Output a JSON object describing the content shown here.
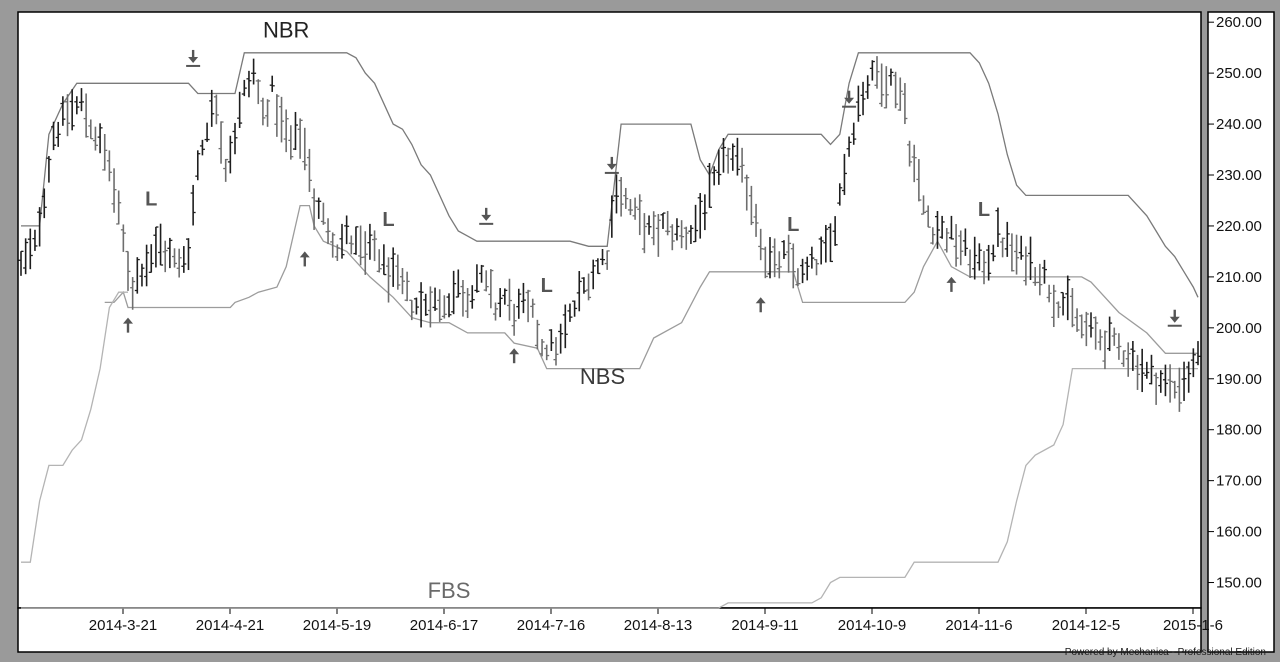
{
  "footer": "Powered by Mechanica - Professional Edition",
  "chart_data": {
    "type": "line",
    "y_ticks": [
      "260.00",
      "250.00",
      "240.00",
      "230.00",
      "220.00",
      "210.00",
      "200.00",
      "190.00",
      "180.00",
      "170.00",
      "160.00",
      "150.00"
    ],
    "y_tick_values": [
      260,
      250,
      240,
      230,
      220,
      210,
      200,
      190,
      180,
      170,
      160,
      150
    ],
    "ylim": [
      145,
      262
    ],
    "x_ticks": [
      "2014-3-21",
      "2014-4-21",
      "2014-5-19",
      "2014-6-17",
      "2014-7-16",
      "2014-8-13",
      "2014-9-11",
      "2014-10-9",
      "2014-11-6",
      "2014-12-5",
      "2015-1-6"
    ],
    "x_tick_index": [
      23,
      46,
      69,
      92,
      115,
      138,
      161,
      184,
      207,
      230,
      253
    ],
    "n_bars": 253,
    "annotations": [
      {
        "text": "NBR",
        "i": 57,
        "v": 257,
        "color": "#222222",
        "size": 22
      },
      {
        "text": "NBS",
        "i": 125,
        "v": 189,
        "color": "#3a3a3a",
        "size": 22
      },
      {
        "text": "FBS",
        "i": 92,
        "v": 147,
        "color": "#6a6a6a",
        "size": 22
      },
      {
        "text": "L",
        "i": 28,
        "v": 224,
        "color": "#555555",
        "size": 20
      },
      {
        "text": "L",
        "i": 79,
        "v": 220,
        "color": "#555555",
        "size": 20
      },
      {
        "text": "L",
        "i": 113,
        "v": 207,
        "color": "#555555",
        "size": 20
      },
      {
        "text": "L",
        "i": 166,
        "v": 219,
        "color": "#555555",
        "size": 20
      },
      {
        "text": "L",
        "i": 207,
        "v": 222,
        "color": "#555555",
        "size": 20
      }
    ],
    "down_arrows": [
      {
        "i": 37,
        "v": 252
      },
      {
        "i": 100,
        "v": 221
      },
      {
        "i": 127,
        "v": 231
      },
      {
        "i": 178,
        "v": 244
      },
      {
        "i": 248,
        "v": 201
      }
    ],
    "up_arrows": [
      {
        "i": 23,
        "v": 202
      },
      {
        "i": 61,
        "v": 215
      },
      {
        "i": 106,
        "v": 196
      },
      {
        "i": 159,
        "v": 206
      },
      {
        "i": 200,
        "v": 210
      }
    ],
    "series": [
      {
        "key": "NBR",
        "color": "#7a7a7a",
        "points": [
          [
            0,
            220
          ],
          [
            4,
            220
          ],
          [
            6,
            238
          ],
          [
            9,
            244
          ],
          [
            12,
            248
          ],
          [
            16,
            248
          ],
          [
            36,
            248
          ],
          [
            38,
            246
          ],
          [
            46,
            246
          ],
          [
            48,
            254
          ],
          [
            70,
            254
          ],
          [
            72,
            253
          ],
          [
            74,
            250
          ],
          [
            76,
            248
          ],
          [
            78,
            244
          ],
          [
            80,
            240
          ],
          [
            82,
            239
          ],
          [
            84,
            236
          ],
          [
            86,
            232
          ],
          [
            88,
            230
          ],
          [
            90,
            226
          ],
          [
            92,
            222
          ],
          [
            94,
            219
          ],
          [
            96,
            218
          ],
          [
            98,
            217
          ],
          [
            118,
            217
          ],
          [
            122,
            216
          ],
          [
            126,
            216
          ],
          [
            128,
            232
          ],
          [
            129,
            240
          ],
          [
            144,
            240
          ],
          [
            146,
            233
          ],
          [
            148,
            230
          ],
          [
            150,
            235
          ],
          [
            152,
            238
          ],
          [
            172,
            238
          ],
          [
            174,
            236
          ],
          [
            176,
            238
          ],
          [
            178,
            248
          ],
          [
            180,
            254
          ],
          [
            204,
            254
          ],
          [
            206,
            252
          ],
          [
            208,
            248
          ],
          [
            210,
            242
          ],
          [
            212,
            234
          ],
          [
            214,
            228
          ],
          [
            216,
            226
          ],
          [
            238,
            226
          ],
          [
            240,
            224
          ],
          [
            242,
            222
          ],
          [
            244,
            219
          ],
          [
            246,
            216
          ],
          [
            248,
            214
          ],
          [
            250,
            211
          ],
          [
            252,
            208
          ],
          [
            253,
            206
          ]
        ]
      },
      {
        "key": "NBS",
        "color": "#9c9c9c",
        "points": [
          [
            18,
            205
          ],
          [
            20,
            205
          ],
          [
            22,
            207
          ],
          [
            23,
            204
          ],
          [
            45,
            204
          ],
          [
            46,
            205
          ],
          [
            49,
            206
          ],
          [
            51,
            207
          ],
          [
            55,
            208
          ],
          [
            57,
            212
          ],
          [
            60,
            224
          ],
          [
            62,
            224
          ],
          [
            63,
            220
          ],
          [
            65,
            217
          ],
          [
            70,
            215
          ],
          [
            75,
            210
          ],
          [
            80,
            206
          ],
          [
            84,
            202
          ],
          [
            88,
            201
          ],
          [
            92,
            201
          ],
          [
            96,
            199
          ],
          [
            104,
            199
          ],
          [
            106,
            197
          ],
          [
            111,
            196
          ],
          [
            113,
            192
          ],
          [
            116,
            192
          ],
          [
            133,
            192
          ],
          [
            136,
            198
          ],
          [
            142,
            201
          ],
          [
            146,
            208
          ],
          [
            148,
            211
          ],
          [
            150,
            211
          ],
          [
            166,
            211
          ],
          [
            168,
            205
          ],
          [
            190,
            205
          ],
          [
            192,
            207
          ],
          [
            194,
            212
          ],
          [
            197,
            217
          ],
          [
            200,
            212
          ],
          [
            204,
            210
          ],
          [
            228,
            210
          ],
          [
            230,
            209
          ],
          [
            232,
            207
          ],
          [
            236,
            203
          ],
          [
            242,
            199
          ],
          [
            246,
            195
          ],
          [
            253,
            195
          ]
        ]
      },
      {
        "key": "FBS",
        "color": "#b4b4b4",
        "points": [
          [
            0,
            154
          ],
          [
            2,
            154
          ],
          [
            4,
            166
          ],
          [
            6,
            173
          ],
          [
            9,
            173
          ],
          [
            11,
            176
          ],
          [
            13,
            178
          ],
          [
            15,
            184
          ],
          [
            17,
            192
          ],
          [
            19,
            204
          ],
          [
            21,
            207
          ],
          [
            22,
            207
          ],
          [
            23,
            207
          ]
        ]
      },
      {
        "key": "FBS",
        "color": "#b4b4b4",
        "points": [
          [
            0,
            145
          ],
          [
            150,
            145
          ],
          [
            152,
            146
          ],
          [
            170,
            146
          ],
          [
            172,
            147
          ],
          [
            174,
            150
          ],
          [
            176,
            151
          ],
          [
            190,
            151
          ],
          [
            192,
            154
          ],
          [
            210,
            154
          ],
          [
            212,
            158
          ],
          [
            214,
            166
          ],
          [
            216,
            173
          ],
          [
            218,
            175
          ],
          [
            222,
            177
          ],
          [
            224,
            181
          ],
          [
            226,
            192
          ],
          [
            253,
            192
          ]
        ]
      }
    ],
    "price_path": [
      [
        0,
        212
      ],
      [
        3,
        216
      ],
      [
        5,
        226
      ],
      [
        7,
        238
      ],
      [
        10,
        242
      ],
      [
        13,
        244
      ],
      [
        16,
        238
      ],
      [
        19,
        232
      ],
      [
        21,
        222
      ],
      [
        23,
        212
      ],
      [
        24,
        208
      ],
      [
        26,
        212
      ],
      [
        28,
        214
      ],
      [
        30,
        216
      ],
      [
        32,
        214
      ],
      [
        34,
        212
      ],
      [
        36,
        216
      ],
      [
        38,
        232
      ],
      [
        40,
        240
      ],
      [
        42,
        244
      ],
      [
        44,
        232
      ],
      [
        46,
        238
      ],
      [
        48,
        246
      ],
      [
        50,
        250
      ],
      [
        52,
        242
      ],
      [
        54,
        246
      ],
      [
        56,
        240
      ],
      [
        58,
        236
      ],
      [
        60,
        238
      ],
      [
        62,
        232
      ],
      [
        63,
        224
      ],
      [
        66,
        220
      ],
      [
        68,
        216
      ],
      [
        70,
        218
      ],
      [
        72,
        216
      ],
      [
        74,
        214
      ],
      [
        76,
        216
      ],
      [
        78,
        212
      ],
      [
        80,
        210
      ],
      [
        82,
        208
      ],
      [
        84,
        205
      ],
      [
        86,
        204
      ],
      [
        88,
        206
      ],
      [
        90,
        204
      ],
      [
        92,
        206
      ],
      [
        94,
        208
      ],
      [
        96,
        206
      ],
      [
        98,
        210
      ],
      [
        100,
        208
      ],
      [
        102,
        204
      ],
      [
        104,
        206
      ],
      [
        106,
        203
      ],
      [
        108,
        204
      ],
      [
        110,
        202
      ],
      [
        112,
        197
      ],
      [
        114,
        196
      ],
      [
        116,
        197
      ],
      [
        118,
        202
      ],
      [
        120,
        206
      ],
      [
        122,
        210
      ],
      [
        124,
        212
      ],
      [
        126,
        215
      ],
      [
        128,
        228
      ],
      [
        130,
        225
      ],
      [
        132,
        222
      ],
      [
        134,
        220
      ],
      [
        136,
        218
      ],
      [
        138,
        220
      ],
      [
        140,
        219
      ],
      [
        142,
        218
      ],
      [
        144,
        219
      ],
      [
        146,
        222
      ],
      [
        148,
        226
      ],
      [
        150,
        230
      ],
      [
        152,
        234
      ],
      [
        154,
        232
      ],
      [
        156,
        228
      ],
      [
        158,
        222
      ],
      [
        160,
        214
      ],
      [
        162,
        212
      ],
      [
        164,
        214
      ],
      [
        166,
        212
      ],
      [
        168,
        210
      ],
      [
        170,
        212
      ],
      [
        172,
        214
      ],
      [
        174,
        216
      ],
      [
        176,
        226
      ],
      [
        178,
        236
      ],
      [
        180,
        244
      ],
      [
        182,
        248
      ],
      [
        184,
        250
      ],
      [
        186,
        249
      ],
      [
        188,
        248
      ],
      [
        190,
        244
      ],
      [
        191,
        236
      ],
      [
        192,
        232
      ],
      [
        194,
        224
      ],
      [
        196,
        220
      ],
      [
        198,
        219
      ],
      [
        200,
        218
      ],
      [
        202,
        216
      ],
      [
        204,
        214
      ],
      [
        206,
        212
      ],
      [
        208,
        214
      ],
      [
        210,
        218
      ],
      [
        212,
        216
      ],
      [
        214,
        214
      ],
      [
        216,
        214
      ],
      [
        218,
        212
      ],
      [
        220,
        210
      ],
      [
        222,
        206
      ],
      [
        224,
        205
      ],
      [
        226,
        203
      ],
      [
        228,
        200
      ],
      [
        230,
        199
      ],
      [
        232,
        198
      ],
      [
        234,
        197
      ],
      [
        236,
        196
      ],
      [
        238,
        195
      ],
      [
        240,
        193
      ],
      [
        242,
        191
      ],
      [
        244,
        190
      ],
      [
        246,
        189
      ],
      [
        248,
        188
      ],
      [
        250,
        190
      ],
      [
        252,
        192
      ],
      [
        253,
        196
      ]
    ]
  }
}
